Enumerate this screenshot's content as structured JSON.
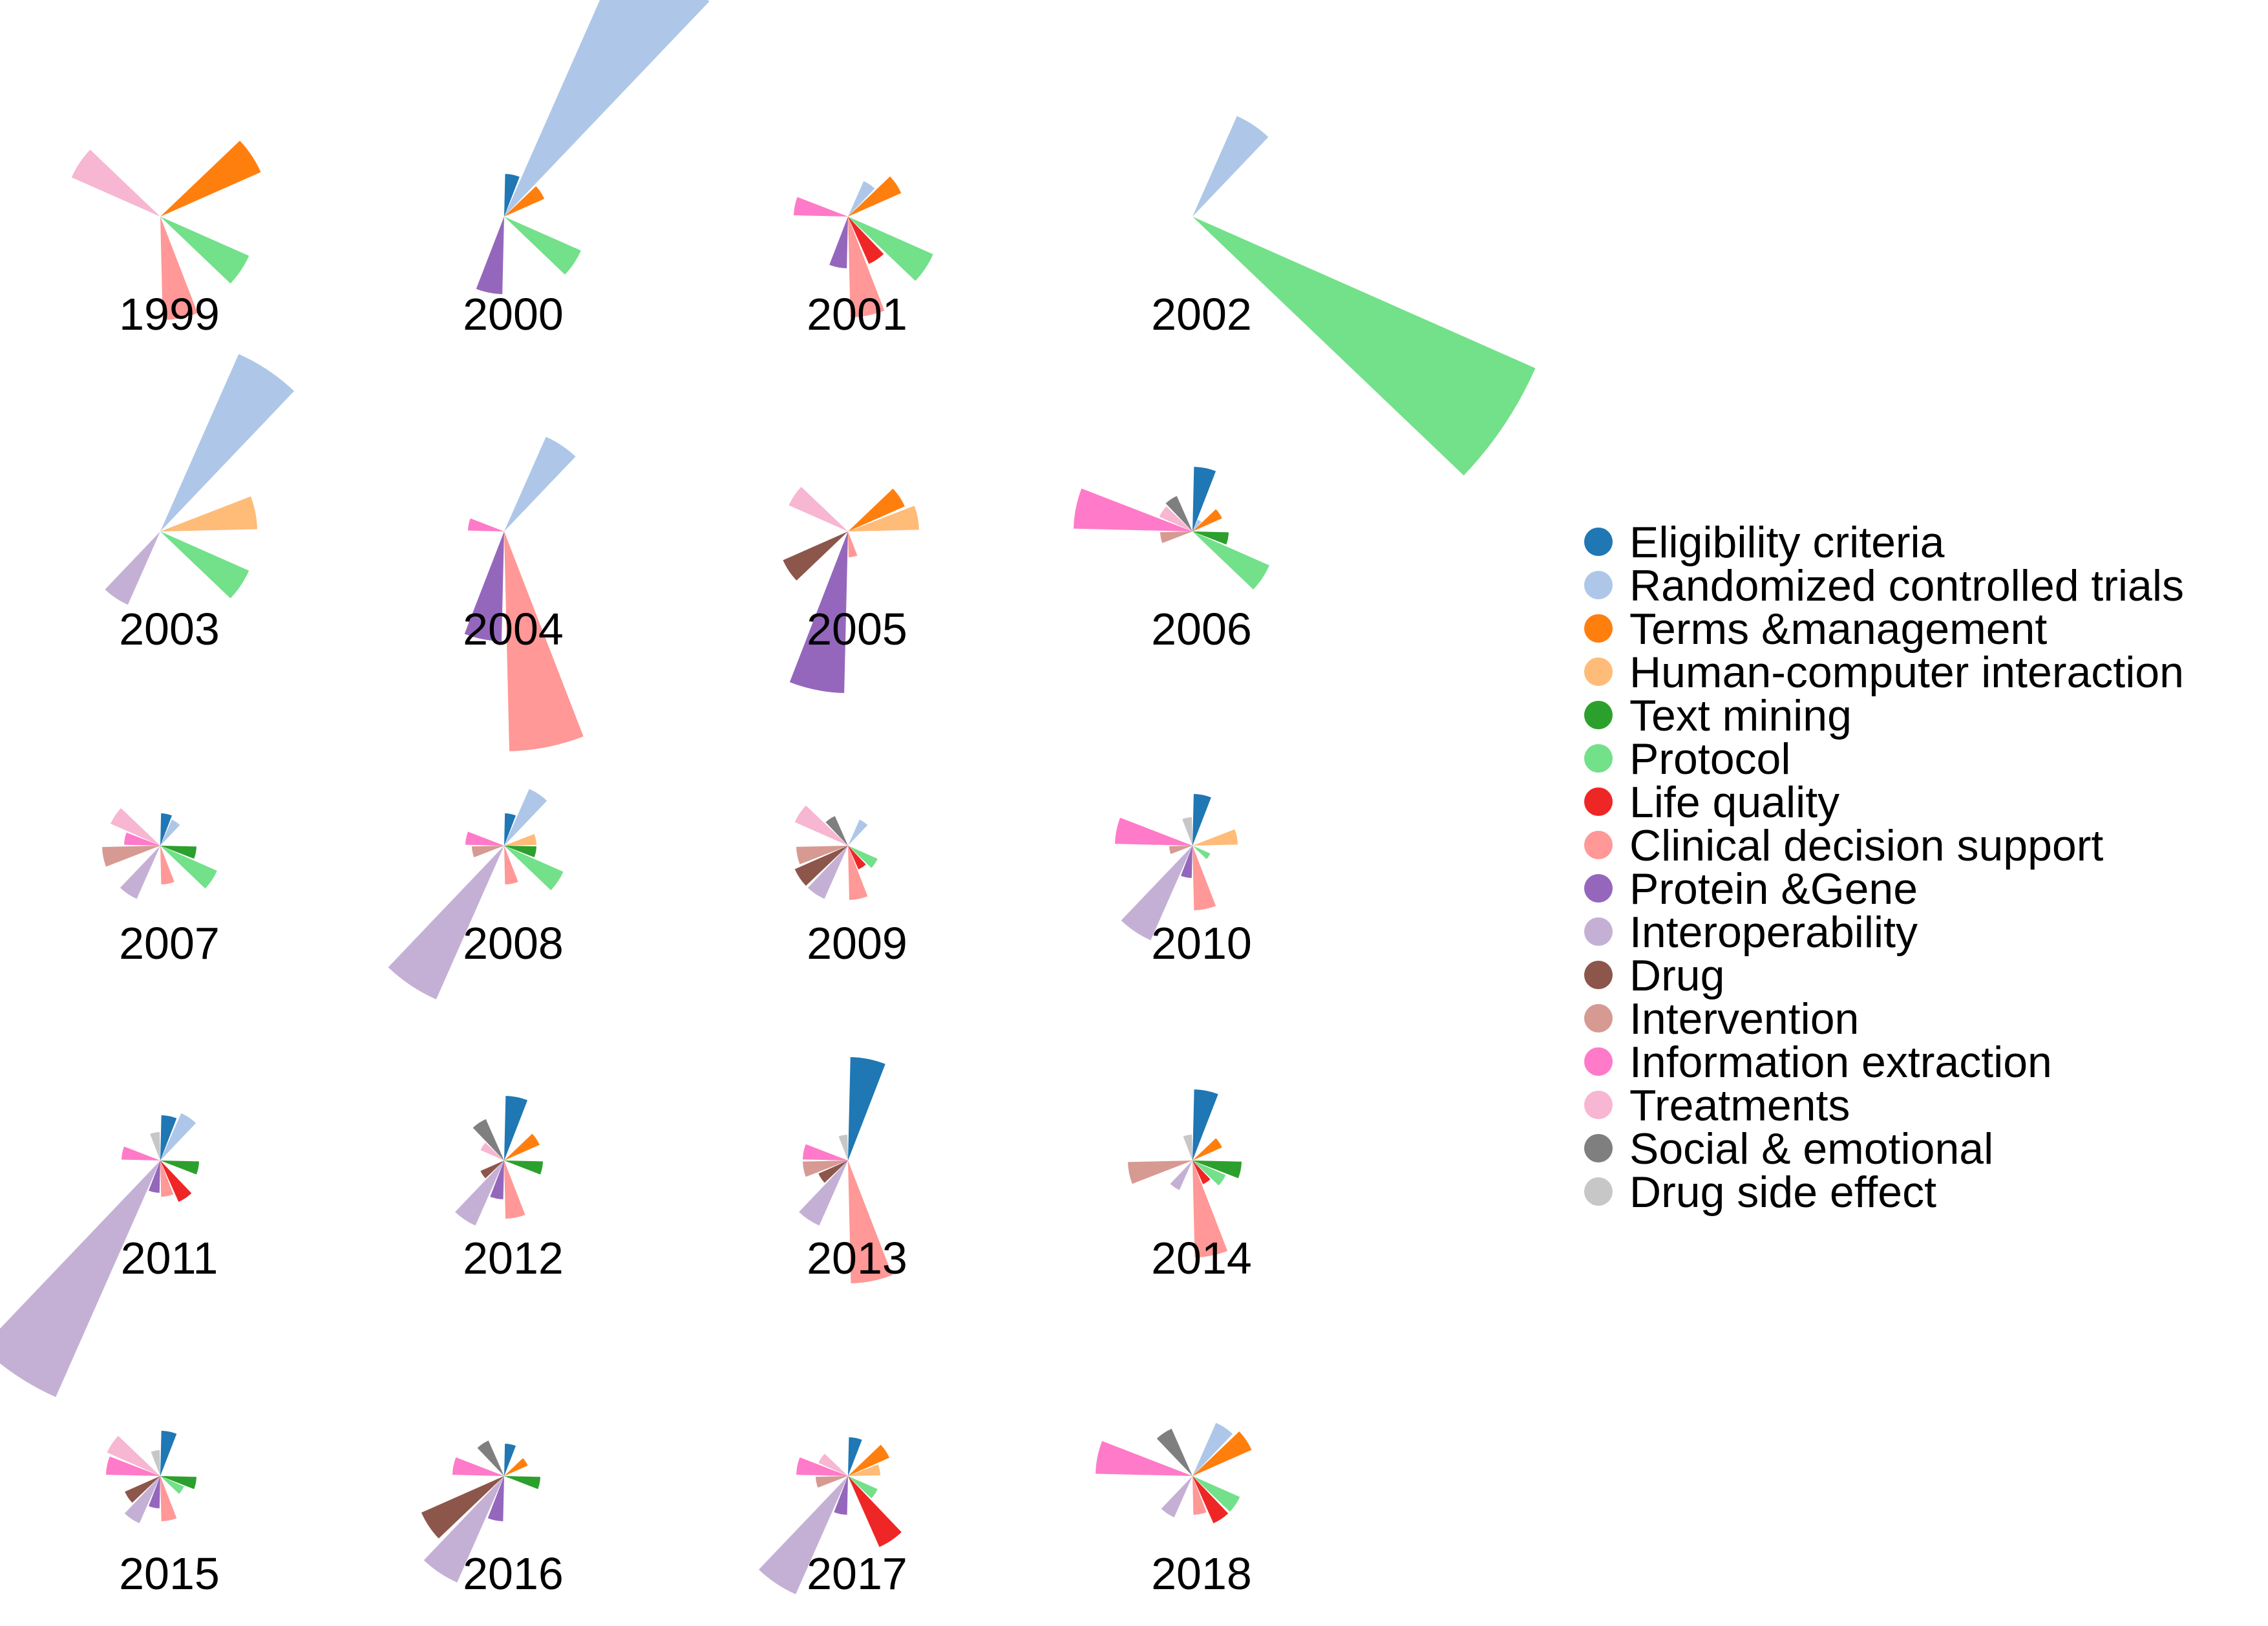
{
  "chart_data": {
    "type": "rose",
    "title": "",
    "legend_position": "right",
    "series": [
      {
        "key": "ec",
        "name": "Eligibility criteria",
        "color": "#1f77b4"
      },
      {
        "key": "rct",
        "name": "Randomized controlled trials",
        "color": "#aec7e8"
      },
      {
        "key": "tm",
        "name": "Terms &management",
        "color": "#ff7f0e"
      },
      {
        "key": "hci",
        "name": "Human-computer interaction",
        "color": "#ffbb78"
      },
      {
        "key": "txt",
        "name": "Text mining",
        "color": "#2ca02c"
      },
      {
        "key": "prot",
        "name": "Protocol",
        "color": "#73e08a"
      },
      {
        "key": "lq",
        "name": "Life quality",
        "color": "#ef2626"
      },
      {
        "key": "cds",
        "name": "Clinical decision support",
        "color": "#ff9896"
      },
      {
        "key": "pg",
        "name": "Protein &Gene",
        "color": "#9467bd"
      },
      {
        "key": "int",
        "name": "Interoperability",
        "color": "#c5b0d5"
      },
      {
        "key": "drug",
        "name": "Drug",
        "color": "#8c564b"
      },
      {
        "key": "intv",
        "name": "Intervention",
        "color": "#d69a93"
      },
      {
        "key": "ie",
        "name": "Information extraction",
        "color": "#ff7ac8"
      },
      {
        "key": "trt",
        "name": "Treatments",
        "color": "#f7b6d2"
      },
      {
        "key": "soc",
        "name": "Social & emotional",
        "color": "#7f7f7f"
      },
      {
        "key": "dse",
        "name": "Drug side effect",
        "color": "#c7c7c7"
      }
    ],
    "years": [
      {
        "year": "1999",
        "values": [
          0,
          0,
          85,
          0,
          0,
          75,
          0,
          80,
          0,
          0,
          0,
          0,
          0,
          75,
          0,
          0
        ]
      },
      {
        "year": "2000",
        "values": [
          33,
          230,
          34,
          0,
          0,
          65,
          0,
          0,
          60,
          0,
          0,
          0,
          0,
          0,
          0,
          0
        ]
      },
      {
        "year": "2001",
        "values": [
          0,
          30,
          45,
          0,
          0,
          72,
          40,
          78,
          40,
          0,
          0,
          0,
          42,
          0,
          0,
          0
        ]
      },
      {
        "year": "2002",
        "values": [
          0,
          85,
          0,
          0,
          0,
          290,
          0,
          0,
          0,
          0,
          0,
          0,
          0,
          0,
          0,
          0
        ]
      },
      {
        "year": "2003",
        "values": [
          0,
          150,
          0,
          75,
          0,
          75,
          0,
          0,
          0,
          62,
          0,
          0,
          0,
          0,
          0,
          0
        ]
      },
      {
        "year": "2004",
        "values": [
          0,
          80,
          0,
          0,
          0,
          0,
          0,
          170,
          85,
          0,
          0,
          0,
          28,
          0,
          0,
          0
        ]
      },
      {
        "year": "2005",
        "values": [
          0,
          0,
          48,
          55,
          0,
          0,
          0,
          20,
          125,
          0,
          55,
          0,
          0,
          50,
          0,
          0
        ]
      },
      {
        "year": "2006",
        "values": [
          50,
          10,
          25,
          0,
          28,
          65,
          0,
          0,
          0,
          0,
          0,
          25,
          92,
          28,
          30,
          0
        ]
      },
      {
        "year": "2007",
        "values": [
          25,
          22,
          0,
          0,
          28,
          48,
          0,
          30,
          0,
          45,
          0,
          45,
          28,
          42,
          0,
          0
        ]
      },
      {
        "year": "2008",
        "values": [
          25,
          48,
          0,
          25,
          25,
          50,
          0,
          30,
          0,
          130,
          0,
          25,
          30,
          0,
          0,
          0
        ]
      },
      {
        "year": "2009",
        "values": [
          0,
          22,
          0,
          0,
          0,
          25,
          20,
          42,
          0,
          45,
          45,
          40,
          0,
          45,
          25,
          0
        ]
      },
      {
        "year": "2010",
        "values": [
          40,
          0,
          0,
          35,
          0,
          15,
          0,
          50,
          25,
          80,
          0,
          18,
          60,
          0,
          0,
          22
        ]
      },
      {
        "year": "2011",
        "values": [
          35,
          40,
          0,
          0,
          30,
          0,
          35,
          28,
          25,
          200,
          0,
          0,
          30,
          0,
          0,
          22
        ]
      },
      {
        "year": "2012",
        "values": [
          50,
          0,
          30,
          0,
          30,
          0,
          0,
          45,
          30,
          55,
          20,
          0,
          0,
          20,
          35,
          0
        ]
      },
      {
        "year": "2013",
        "values": [
          80,
          0,
          0,
          0,
          0,
          0,
          0,
          95,
          0,
          55,
          25,
          35,
          35,
          0,
          0,
          20
        ]
      },
      {
        "year": "2014",
        "values": [
          55,
          0,
          25,
          0,
          38,
          28,
          20,
          75,
          0,
          25,
          0,
          50,
          0,
          0,
          0,
          20
        ]
      },
      {
        "year": "2015",
        "values": [
          35,
          0,
          0,
          0,
          28,
          20,
          0,
          35,
          25,
          40,
          30,
          0,
          42,
          45,
          0,
          20
        ]
      },
      {
        "year": "2016",
        "values": [
          25,
          0,
          20,
          0,
          28,
          0,
          0,
          0,
          35,
          90,
          70,
          0,
          40,
          0,
          30,
          0
        ]
      },
      {
        "year": "2017",
        "values": [
          30,
          0,
          35,
          25,
          0,
          25,
          60,
          0,
          30,
          100,
          0,
          25,
          40,
          25,
          0,
          0
        ]
      },
      {
        "year": "2018",
        "values": [
          0,
          45,
          50,
          0,
          0,
          40,
          40,
          30,
          0,
          35,
          0,
          0,
          75,
          0,
          40,
          0
        ]
      }
    ]
  }
}
